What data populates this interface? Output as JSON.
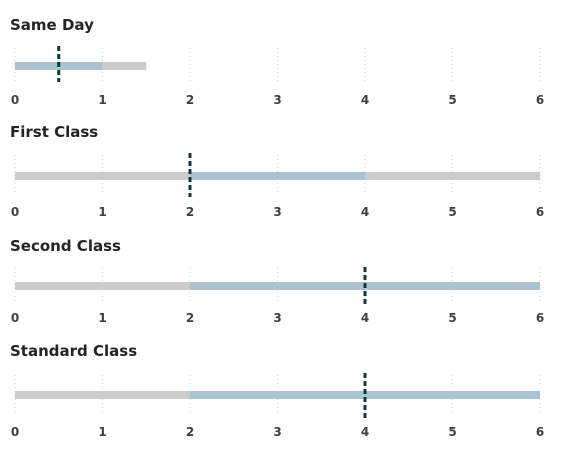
{
  "chart_data": {
    "type": "bullet",
    "xlim": [
      0,
      6
    ],
    "ticks": [
      0,
      1,
      2,
      3,
      4,
      5,
      6
    ],
    "grid": "vertical dotted",
    "colors": {
      "range": "#cccccc",
      "bar": "#a9c3d2",
      "target": "#0f3a3a",
      "text": "#252423",
      "tick": "#3f3f3f",
      "grid": "#d0d0d0"
    },
    "rows": [
      {
        "title": "Same Day",
        "range_end": 1.5,
        "bar_start": 0,
        "bar_end": 1,
        "target": 0.5
      },
      {
        "title": "First Class",
        "range_end": 6,
        "bar_start": 2,
        "bar_end": 4,
        "target": 2
      },
      {
        "title": "Second Class",
        "range_end": 6,
        "bar_start": 2,
        "bar_end": 6,
        "target": 4
      },
      {
        "title": "Standard Class",
        "range_end": 6,
        "bar_start": 2,
        "bar_end": 6,
        "target": 4
      }
    ]
  }
}
